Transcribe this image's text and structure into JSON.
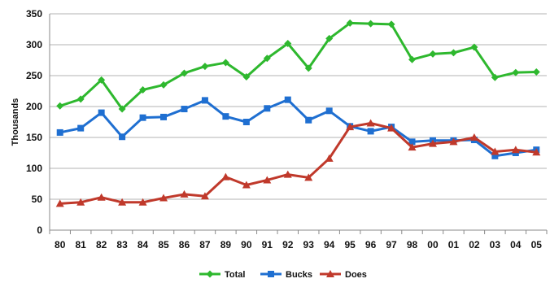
{
  "chart_data": {
    "type": "line",
    "title": "",
    "xlabel": "",
    "ylabel": "Thousands",
    "ylim": [
      0,
      350
    ],
    "yticks": [
      0,
      50,
      100,
      150,
      200,
      250,
      300,
      350
    ],
    "grid": "horizontal",
    "legend_position": "bottom",
    "categories": [
      "80",
      "81",
      "82",
      "83",
      "84",
      "85",
      "86",
      "87",
      "89",
      "90",
      "91",
      "92",
      "93",
      "94",
      "95",
      "96",
      "97",
      "98",
      "00",
      "01",
      "02",
      "03",
      "04",
      "05"
    ],
    "series": [
      {
        "name": "Total",
        "color": "#2eb82e",
        "marker": "diamond",
        "values": [
          201,
          212,
          243,
          196,
          227,
          235,
          254,
          265,
          271,
          248,
          278,
          302,
          262,
          310,
          335,
          334,
          333,
          276,
          285,
          287,
          296,
          247,
          255,
          256
        ]
      },
      {
        "name": "Bucks",
        "color": "#1f6fd1",
        "marker": "square",
        "values": [
          158,
          165,
          190,
          151,
          182,
          183,
          196,
          210,
          184,
          175,
          197,
          211,
          178,
          193,
          168,
          160,
          167,
          143,
          145,
          145,
          146,
          120,
          125,
          130
        ]
      },
      {
        "name": "Does",
        "color": "#c0392b",
        "marker": "triangle",
        "values": [
          43,
          45,
          53,
          45,
          45,
          52,
          58,
          55,
          86,
          73,
          81,
          90,
          85,
          116,
          167,
          173,
          165,
          134,
          140,
          143,
          150,
          127,
          130,
          126
        ]
      }
    ]
  }
}
